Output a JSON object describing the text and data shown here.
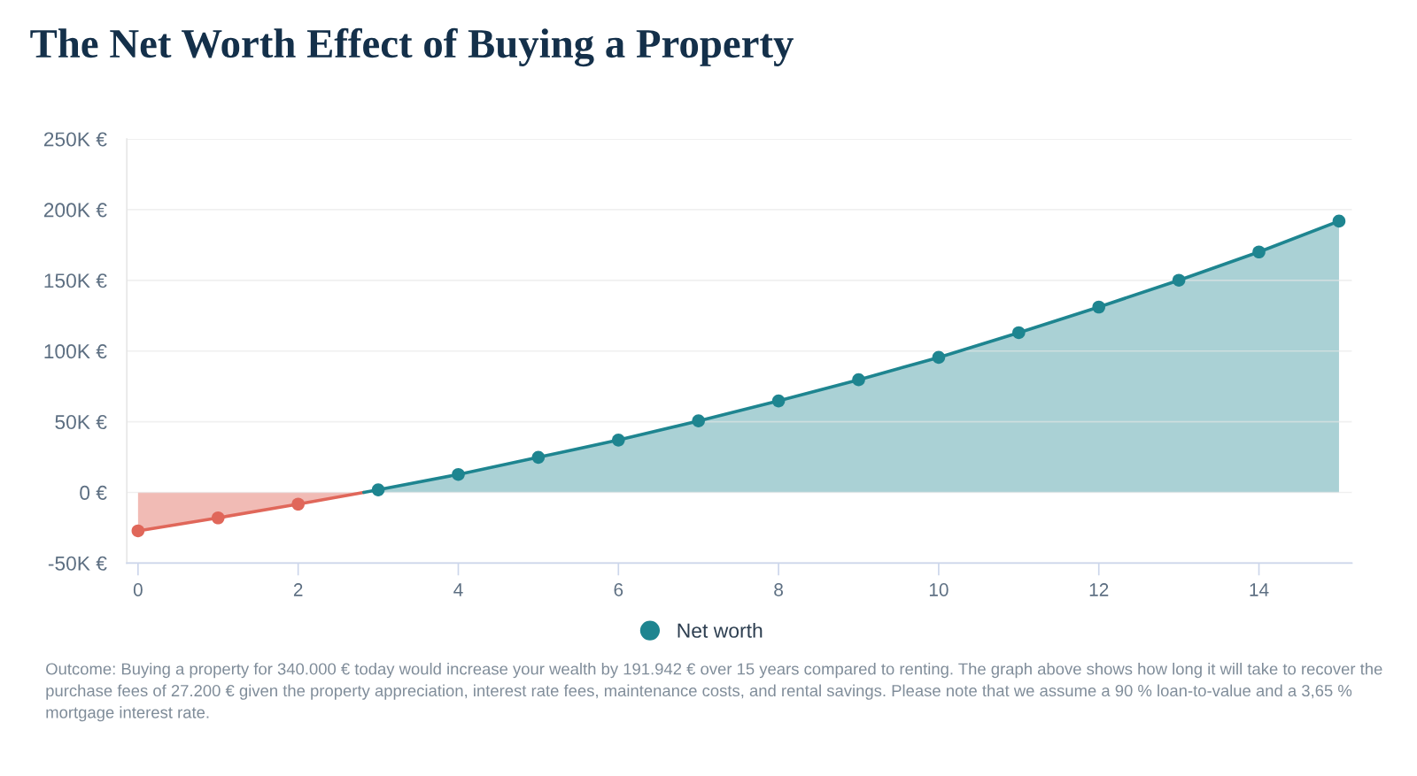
{
  "chart_data": {
    "type": "area",
    "title": "The Net Worth Effect of Buying a Property",
    "xlim": [
      -0.14,
      15.16
    ],
    "xticks": [
      0,
      2,
      4,
      6,
      8,
      10,
      12,
      14
    ],
    "ylim": [
      -50000,
      250000
    ],
    "yticks": [
      {
        "value": -50000,
        "label": "-50K €"
      },
      {
        "value": 0,
        "label": "0 €"
      },
      {
        "value": 50000,
        "label": "50K €"
      },
      {
        "value": 100000,
        "label": "100K €"
      },
      {
        "value": 150000,
        "label": "150K €"
      },
      {
        "value": 200000,
        "label": "200K €"
      },
      {
        "value": 250000,
        "label": "250K €"
      }
    ],
    "series": [
      {
        "color": "#e0675a",
        "x": [
          0,
          1,
          2,
          2.82
        ],
        "values": [
          -27200,
          -18000,
          -8300,
          0
        ]
      },
      {
        "name": "Net worth",
        "color": "#1e8590",
        "x": [
          2.82,
          3,
          4,
          5,
          6,
          7,
          8,
          9,
          10,
          11,
          12,
          13,
          14,
          15
        ],
        "values": [
          0,
          1800,
          12700,
          24800,
          37000,
          50600,
          64700,
          79700,
          95500,
          113000,
          131100,
          150100,
          170100,
          191900
        ]
      }
    ],
    "marker": "circle",
    "line_style": "solid",
    "grid": "y",
    "legend": "bottom",
    "annotations": [
      "Outcome: Buying a property for 340.000 € today would increase your wealth by 191.942 € over 15 years compared to renting. The graph above shows how long it will take to recover the purchase fees of 27.200 € given the property appreciation, interest rate fees, maintenance costs, and rental savings. Please note that we assume a 90 % loan-to-value and a 3,65 % mortgage interest rate."
    ]
  }
}
